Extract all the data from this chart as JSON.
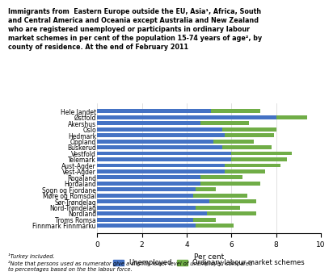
{
  "counties": [
    "Hele landet",
    "Østfold",
    "Akershus",
    "Oslo",
    "Hedmark",
    "Oppland",
    "Buskerud",
    "Vestfold",
    "Telemark",
    "Aust-Agder",
    "Vest-Agder",
    "Rogaland",
    "Hordaland",
    "Sogn og Fjordane",
    "Møre og Romsdal",
    "Sør-Trøndelag",
    "Nord-Trøndelag",
    "Nordland",
    "Troms Romsa",
    "Finnmark Finnmárku"
  ],
  "unemployed": [
    5.1,
    8.0,
    4.6,
    5.6,
    5.7,
    5.2,
    5.6,
    6.0,
    6.0,
    5.7,
    5.7,
    4.6,
    4.6,
    4.4,
    4.3,
    5.0,
    4.4,
    4.9,
    4.3,
    4.4
  ],
  "ordinary": [
    2.2,
    1.4,
    2.2,
    2.4,
    2.2,
    1.8,
    2.2,
    2.7,
    2.5,
    2.5,
    1.8,
    1.9,
    2.7,
    0.9,
    2.4,
    2.1,
    2.0,
    2.2,
    1.0,
    1.7
  ],
  "unemployed_color": "#4472C4",
  "ordinary_color": "#70AD47",
  "title_line1": "Immigrants from  Eastern Europe outside the EU, Asia¹, Africa, South",
  "title_line2": "and Central America and Oceania except Australia and New Zealand",
  "title_line3": "who are registered unemployed or participants in ordinary labour",
  "title_line4": "market schemes in per cent of the population 15-74 years of age², by",
  "title_line5": "county of residence. At the end of February 2011",
  "xlabel": "Per cent",
  "xlim": [
    0,
    10
  ],
  "xticks": [
    0,
    2,
    4,
    6,
    8,
    10
  ],
  "footnote1": "¹Turkey included.",
  "footnote2": "²Note that persons used as numerator give a slightly lower level of unemployed compared\nto percentages based on the the labour force.",
  "bar_height": 0.65,
  "title_fontsize": 5.8,
  "label_fontsize": 5.5,
  "xlabel_fontsize": 6.5,
  "xtick_fontsize": 6.5,
  "legend_fontsize": 6.0,
  "footnote_fontsize": 4.8
}
